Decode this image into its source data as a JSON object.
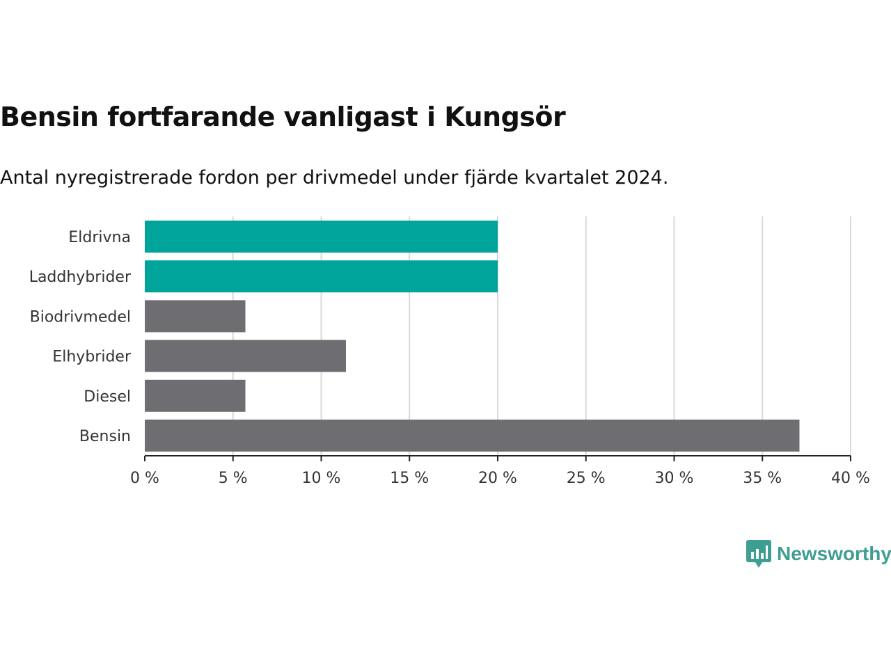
{
  "header": {
    "title": "Bensin fortfarande vanligast i Kungsör",
    "subtitle": "Antal nyregistrerade fordon per drivmedel under fjärde kvartalet 2024."
  },
  "brand": {
    "name": "Newsworthy",
    "icon": "newsworthy-logo-icon",
    "color": "#3f9e92"
  },
  "chart_data": {
    "type": "bar",
    "orientation": "horizontal",
    "categories": [
      "Eldrivna",
      "Laddhybrider",
      "Biodrivmedel",
      "Elhybrider",
      "Diesel",
      "Bensin"
    ],
    "values": [
      20.0,
      20.0,
      5.7,
      11.4,
      5.7,
      37.1
    ],
    "colors": [
      "#00a49a",
      "#00a49a",
      "#6e6d72",
      "#6e6d72",
      "#6e6d72",
      "#6e6d72"
    ],
    "xlim": [
      0,
      40
    ],
    "xticks": [
      0,
      5,
      10,
      15,
      20,
      25,
      30,
      35,
      40
    ],
    "xtick_labels": [
      "0 %",
      "5 %",
      "10 %",
      "15 %",
      "20 %",
      "25 %",
      "30 %",
      "35 %",
      "40 %"
    ],
    "grid": "vertical",
    "grid_color": "#d9d9d9",
    "xlabel": "",
    "ylabel": ""
  }
}
